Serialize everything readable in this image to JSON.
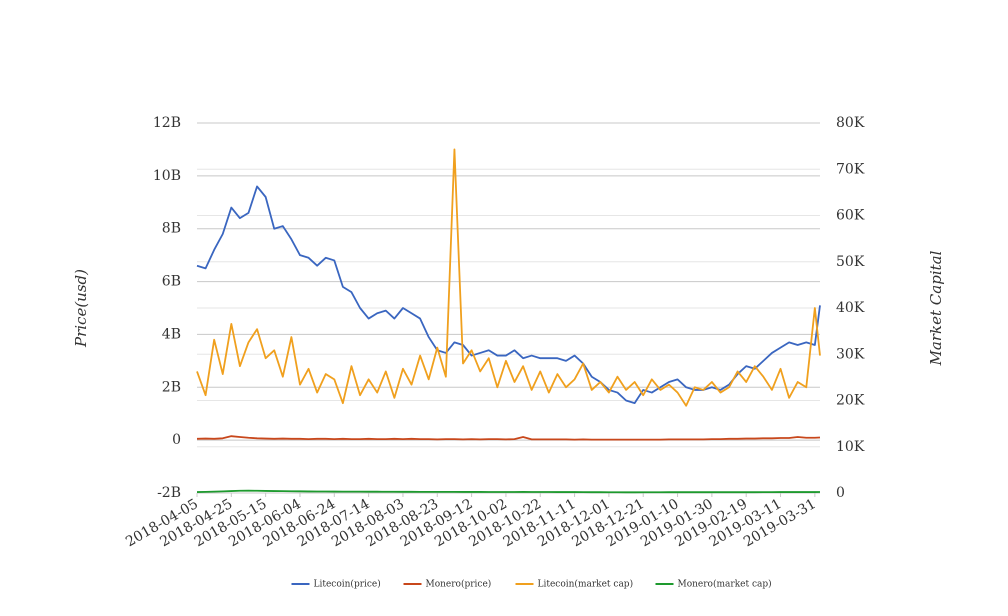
{
  "chart_data": {
    "type": "line",
    "y_label": "Price(usd)",
    "y2_label": "Market Capital",
    "x": [
      "2018-04-05",
      "2018-04-10",
      "2018-04-15",
      "2018-04-20",
      "2018-04-25",
      "2018-04-30",
      "2018-05-05",
      "2018-05-10",
      "2018-05-15",
      "2018-05-20",
      "2018-05-25",
      "2018-05-30",
      "2018-06-04",
      "2018-06-09",
      "2018-06-14",
      "2018-06-19",
      "2018-06-24",
      "2018-06-29",
      "2018-07-04",
      "2018-07-09",
      "2018-07-14",
      "2018-07-19",
      "2018-07-24",
      "2018-07-29",
      "2018-08-03",
      "2018-08-08",
      "2018-08-13",
      "2018-08-18",
      "2018-08-23",
      "2018-08-28",
      "2018-09-02",
      "2018-09-07",
      "2018-09-12",
      "2018-09-17",
      "2018-09-22",
      "2018-09-27",
      "2018-10-02",
      "2018-10-07",
      "2018-10-12",
      "2018-10-17",
      "2018-10-22",
      "2018-10-27",
      "2018-11-01",
      "2018-11-06",
      "2018-11-11",
      "2018-11-16",
      "2018-11-21",
      "2018-11-26",
      "2018-12-01",
      "2018-12-06",
      "2018-12-11",
      "2018-12-16",
      "2018-12-21",
      "2018-12-26",
      "2018-12-31",
      "2019-01-05",
      "2019-01-10",
      "2019-01-15",
      "2019-01-20",
      "2019-01-25",
      "2019-01-30",
      "2019-02-04",
      "2019-02-09",
      "2019-02-14",
      "2019-02-19",
      "2019-02-24",
      "2019-03-01",
      "2019-03-06",
      "2019-03-11",
      "2019-03-16",
      "2019-03-21",
      "2019-03-26",
      "2019-03-31",
      "2019-04-03"
    ],
    "xlim": [
      "2018-04-05",
      "2019-04-03"
    ],
    "xticks": [
      "2018-04-05",
      "2018-04-25",
      "2018-05-15",
      "2018-06-04",
      "2018-06-24",
      "2018-07-14",
      "2018-08-03",
      "2018-08-23",
      "2018-09-12",
      "2018-10-02",
      "2018-10-22",
      "2018-11-11",
      "2018-12-01",
      "2018-12-21",
      "2019-01-10",
      "2019-01-30",
      "2019-02-19",
      "2019-03-11",
      "2019-03-31"
    ],
    "ylim": [
      -2000000000.0,
      12000000000.0
    ],
    "yticks": [
      {
        "value": -2000000000.0,
        "label": "-2B"
      },
      0,
      {
        "value": 2000000000.0,
        "label": "2B"
      },
      {
        "value": 4000000000.0,
        "label": "4B"
      },
      {
        "value": 6000000000.0,
        "label": "6B"
      },
      {
        "value": 8000000000.0,
        "label": "8B"
      },
      {
        "value": 10000000000.0,
        "label": "10B"
      },
      {
        "value": 12000000000.0,
        "label": "12B"
      }
    ],
    "y2lim": [
      0,
      80000
    ],
    "y2ticks": [
      0,
      {
        "value": 10000,
        "label": "10K"
      },
      {
        "value": 20000,
        "label": "20K"
      },
      {
        "value": 30000,
        "label": "30K"
      },
      {
        "value": 40000,
        "label": "40K"
      },
      {
        "value": 50000,
        "label": "50K"
      },
      {
        "value": 60000,
        "label": "60K"
      },
      {
        "value": 70000,
        "label": "70K"
      },
      {
        "value": 80000,
        "label": "80K"
      }
    ],
    "grid": true,
    "legend": "bottom",
    "series": [
      {
        "name": "Litecoin(price)",
        "color": "#3a66c0",
        "values": [
          6600000000.0,
          6500000000.0,
          7200000000.0,
          7800000000.0,
          8800000000.0,
          8400000000.0,
          8600000000.0,
          9600000000.0,
          9200000000.0,
          8000000000.0,
          8100000000.0,
          7600000000.0,
          7000000000.0,
          6900000000.0,
          6600000000.0,
          6900000000.0,
          6800000000.0,
          5800000000.0,
          5600000000.0,
          5000000000.0,
          4600000000.0,
          4800000000.0,
          4900000000.0,
          4600000000.0,
          5000000000.0,
          4800000000.0,
          4600000000.0,
          3900000000.0,
          3400000000.0,
          3300000000.0,
          3700000000.0,
          3600000000.0,
          3200000000.0,
          3300000000.0,
          3400000000.0,
          3200000000.0,
          3200000000.0,
          3400000000.0,
          3100000000.0,
          3200000000.0,
          3100000000.0,
          3100000000.0,
          3100000000.0,
          3000000000.0,
          3200000000.0,
          2900000000.0,
          2400000000.0,
          2200000000.0,
          1900000000.0,
          1800000000.0,
          1500000000.0,
          1400000000.0,
          1900000000.0,
          1800000000.0,
          2000000000.0,
          2200000000.0,
          2300000000.0,
          2000000000.0,
          1900000000.0,
          1900000000.0,
          2000000000.0,
          1900000000.0,
          2100000000.0,
          2500000000.0,
          2800000000.0,
          2700000000.0,
          3000000000.0,
          3300000000.0,
          3500000000.0,
          3700000000.0,
          3600000000.0,
          3700000000.0,
          3600000000.0,
          5100000000.0
        ]
      },
      {
        "name": "Monero(price)",
        "color": "#c8471b",
        "values": [
          50000000.0,
          60000000.0,
          50000000.0,
          70000000.0,
          150000000.0,
          120000000.0,
          90000000.0,
          70000000.0,
          60000000.0,
          50000000.0,
          60000000.0,
          50000000.0,
          50000000.0,
          40000000.0,
          50000000.0,
          50000000.0,
          40000000.0,
          50000000.0,
          40000000.0,
          40000000.0,
          50000000.0,
          40000000.0,
          40000000.0,
          50000000.0,
          40000000.0,
          50000000.0,
          40000000.0,
          40000000.0,
          30000000.0,
          40000000.0,
          40000000.0,
          30000000.0,
          40000000.0,
          30000000.0,
          40000000.0,
          40000000.0,
          30000000.0,
          40000000.0,
          120000000.0,
          30000000.0,
          30000000.0,
          30000000.0,
          30000000.0,
          30000000.0,
          20000000.0,
          30000000.0,
          20000000.0,
          20000000.0,
          20000000.0,
          20000000.0,
          20000000.0,
          20000000.0,
          20000000.0,
          20000000.0,
          20000000.0,
          30000000.0,
          30000000.0,
          30000000.0,
          30000000.0,
          30000000.0,
          40000000.0,
          40000000.0,
          50000000.0,
          50000000.0,
          60000000.0,
          60000000.0,
          70000000.0,
          70000000.0,
          80000000.0,
          80000000.0,
          120000000.0,
          90000000.0,
          90000000.0,
          100000000.0
        ]
      },
      {
        "name": "Litecoin(market cap)",
        "color": "#f0a01e",
        "values": [
          2600000000.0,
          1700000000.0,
          3800000000.0,
          2500000000.0,
          4400000000.0,
          2800000000.0,
          3700000000.0,
          4200000000.0,
          3100000000.0,
          3400000000.0,
          2400000000.0,
          3900000000.0,
          2100000000.0,
          2700000000.0,
          1800000000.0,
          2500000000.0,
          2300000000.0,
          1400000000.0,
          2800000000.0,
          1700000000.0,
          2300000000.0,
          1800000000.0,
          2600000000.0,
          1600000000.0,
          2700000000.0,
          2100000000.0,
          3200000000.0,
          2300000000.0,
          3500000000.0,
          2400000000.0,
          11000000000.0,
          2900000000.0,
          3400000000.0,
          2600000000.0,
          3100000000.0,
          2000000000.0,
          3000000000.0,
          2200000000.0,
          2800000000.0,
          1900000000.0,
          2600000000.0,
          1800000000.0,
          2500000000.0,
          2000000000.0,
          2300000000.0,
          2900000000.0,
          1900000000.0,
          2200000000.0,
          1800000000.0,
          2400000000.0,
          1900000000.0,
          2200000000.0,
          1700000000.0,
          2300000000.0,
          1900000000.0,
          2100000000.0,
          1800000000.0,
          1300000000.0,
          2000000000.0,
          1900000000.0,
          2200000000.0,
          1800000000.0,
          2000000000.0,
          2600000000.0,
          2200000000.0,
          2800000000.0,
          2400000000.0,
          1900000000.0,
          2700000000.0,
          1600000000.0,
          2200000000.0,
          2000000000.0,
          5000000000.0,
          3200000000.0
        ]
      },
      {
        "name": "Monero(market cap)",
        "color": "#1e9a2e",
        "axis": "y2",
        "values": [
          200,
          250,
          300,
          350,
          420,
          480,
          500,
          480,
          450,
          420,
          400,
          380,
          360,
          340,
          330,
          320,
          310,
          300,
          300,
          290,
          280,
          280,
          270,
          270,
          260,
          260,
          250,
          250,
          240,
          240,
          240,
          230,
          230,
          230,
          220,
          220,
          220,
          220,
          230,
          210,
          210,
          210,
          200,
          200,
          200,
          190,
          180,
          170,
          160,
          160,
          150,
          150,
          160,
          160,
          160,
          170,
          170,
          170,
          170,
          170,
          170,
          170,
          170,
          180,
          180,
          180,
          190,
          190,
          200,
          200,
          200,
          200,
          200,
          210
        ]
      }
    ]
  }
}
